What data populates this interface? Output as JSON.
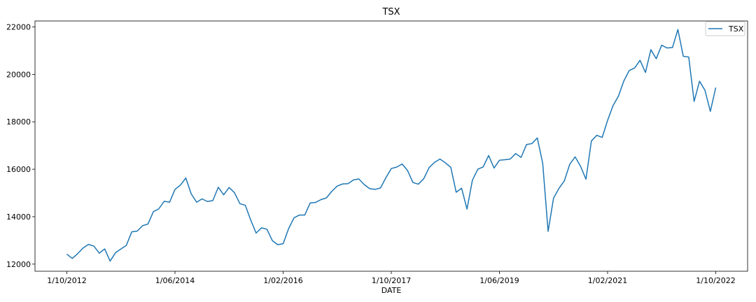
{
  "chart_data": {
    "type": "line",
    "title": "TSX",
    "xlabel": "DATE",
    "ylabel": "",
    "ylim": [
      11700,
      22250
    ],
    "yticks": [
      12000,
      14000,
      16000,
      18000,
      20000,
      22000
    ],
    "xticks": [
      "1/10/2012",
      "1/06/2014",
      "1/02/2016",
      "1/10/2017",
      "1/06/2019",
      "1/02/2021",
      "1/10/2022"
    ],
    "grid": false,
    "legend": "top-right",
    "x": [
      "1/10/2012",
      "1/11/2012",
      "1/12/2012",
      "1/01/2013",
      "1/02/2013",
      "1/03/2013",
      "1/04/2013",
      "1/05/2013",
      "1/06/2013",
      "1/07/2013",
      "1/08/2013",
      "1/09/2013",
      "1/10/2013",
      "1/11/2013",
      "1/12/2013",
      "1/01/2014",
      "1/02/2014",
      "1/03/2014",
      "1/04/2014",
      "1/05/2014",
      "1/06/2014",
      "1/07/2014",
      "1/08/2014",
      "1/09/2014",
      "1/10/2014",
      "1/11/2014",
      "1/12/2014",
      "1/01/2015",
      "1/02/2015",
      "1/03/2015",
      "1/04/2015",
      "1/05/2015",
      "1/06/2015",
      "1/07/2015",
      "1/08/2015",
      "1/09/2015",
      "1/10/2015",
      "1/11/2015",
      "1/12/2015",
      "1/01/2016",
      "1/02/2016",
      "1/03/2016",
      "1/04/2016",
      "1/05/2016",
      "1/06/2016",
      "1/07/2016",
      "1/08/2016",
      "1/09/2016",
      "1/10/2016",
      "1/11/2016",
      "1/12/2016",
      "1/01/2017",
      "1/02/2017",
      "1/03/2017",
      "1/04/2017",
      "1/05/2017",
      "1/06/2017",
      "1/07/2017",
      "1/08/2017",
      "1/09/2017",
      "1/10/2017",
      "1/11/2017",
      "1/12/2017",
      "1/01/2018",
      "1/02/2018",
      "1/03/2018",
      "1/04/2018",
      "1/05/2018",
      "1/06/2018",
      "1/07/2018",
      "1/08/2018",
      "1/09/2018",
      "1/10/2018",
      "1/11/2018",
      "1/12/2018",
      "1/01/2019",
      "1/02/2019",
      "1/03/2019",
      "1/04/2019",
      "1/05/2019",
      "1/06/2019",
      "1/07/2019",
      "1/08/2019",
      "1/09/2019",
      "1/10/2019",
      "1/11/2019",
      "1/12/2019",
      "1/01/2020",
      "1/02/2020",
      "1/03/2020",
      "1/04/2020",
      "1/05/2020",
      "1/06/2020",
      "1/07/2020",
      "1/08/2020",
      "1/09/2020",
      "1/10/2020",
      "1/11/2020",
      "1/12/2020",
      "1/01/2021",
      "1/02/2021",
      "1/03/2021",
      "1/04/2021",
      "1/05/2021",
      "1/06/2021",
      "1/07/2021",
      "1/08/2021",
      "1/09/2021",
      "1/10/2021",
      "1/11/2021",
      "1/12/2021",
      "1/01/2022",
      "1/02/2022",
      "1/03/2022",
      "1/04/2022",
      "1/05/2022",
      "1/06/2022",
      "1/07/2022",
      "1/08/2022",
      "1/09/2022",
      "1/10/2022"
    ],
    "series": [
      {
        "name": "TSX",
        "color": "#1f77b4",
        "values": [
          12420,
          12240,
          12440,
          12680,
          12830,
          12760,
          12460,
          12640,
          12130,
          12480,
          12640,
          12790,
          13360,
          13390,
          13620,
          13690,
          14210,
          14330,
          14650,
          14610,
          15150,
          15330,
          15630,
          14960,
          14610,
          14750,
          14640,
          14680,
          15240,
          14920,
          15230,
          15010,
          14550,
          14480,
          13860,
          13310,
          13530,
          13470,
          12990,
          12820,
          12860,
          13490,
          13950,
          14070,
          14070,
          14580,
          14600,
          14720,
          14790,
          15070,
          15290,
          15380,
          15390,
          15550,
          15590,
          15350,
          15180,
          15150,
          15210,
          15640,
          16030,
          16090,
          16220,
          15950,
          15440,
          15370,
          15600,
          16070,
          16290,
          16430,
          16270,
          16080,
          15030,
          15200,
          14320,
          15540,
          16000,
          16100,
          16580,
          16050,
          16380,
          16400,
          16430,
          16660,
          16500,
          17040,
          17080,
          17320,
          16250,
          13380,
          14780,
          15190,
          15510,
          16210,
          16520,
          16120,
          15580,
          17190,
          17430,
          17340,
          18060,
          18680,
          19080,
          19720,
          20160,
          20270,
          20590,
          20080,
          21040,
          20660,
          21230,
          21110,
          21130,
          21890,
          20760,
          20730,
          18860,
          19710,
          19330,
          18440,
          19440
        ]
      }
    ]
  }
}
